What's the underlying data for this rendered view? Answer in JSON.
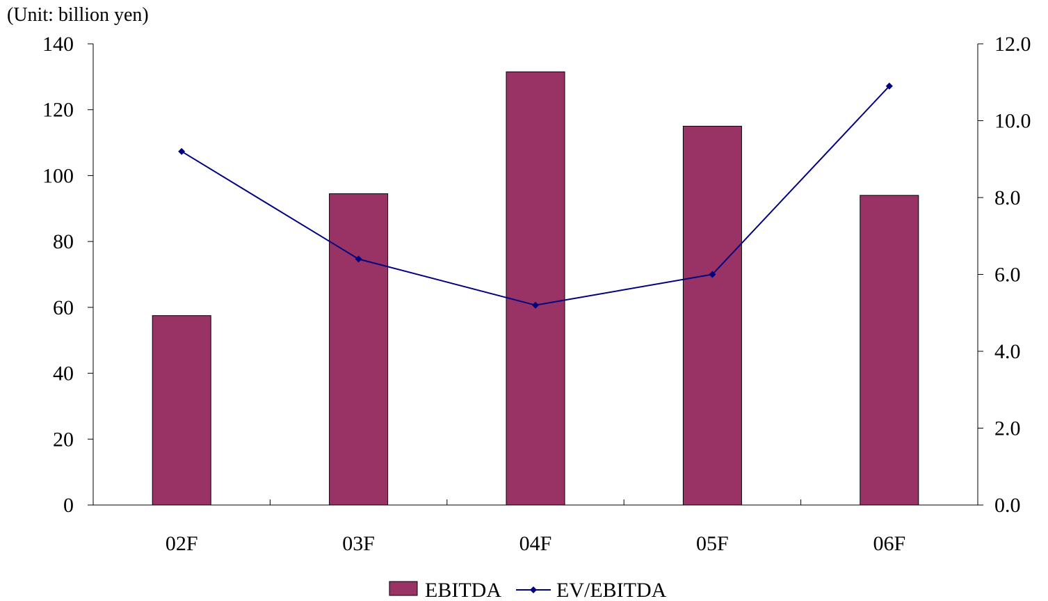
{
  "unit_label": "(Unit: billion yen)",
  "chart_data": {
    "type": "bar",
    "categories": [
      "02F",
      "03F",
      "04F",
      "05F",
      "06F"
    ],
    "series": [
      {
        "name": "EBITDA",
        "type": "bar",
        "axis": "left",
        "color": "#993366",
        "values": [
          57.5,
          94.5,
          131.5,
          115.0,
          94.0
        ]
      },
      {
        "name": "EV/EBITDA",
        "type": "line",
        "axis": "right",
        "color": "#000080",
        "values": [
          9.2,
          6.4,
          5.2,
          6.0,
          10.9
        ]
      }
    ],
    "y_left": {
      "min": 0,
      "max": 140,
      "ticks": [
        "0",
        "20",
        "40",
        "60",
        "80",
        "100",
        "120",
        "140"
      ]
    },
    "y_right": {
      "min": 0,
      "max": 12,
      "ticks": [
        "0.0",
        "2.0",
        "4.0",
        "6.0",
        "8.0",
        "10.0",
        "12.0"
      ]
    },
    "grid": false,
    "legend_position": "bottom"
  }
}
